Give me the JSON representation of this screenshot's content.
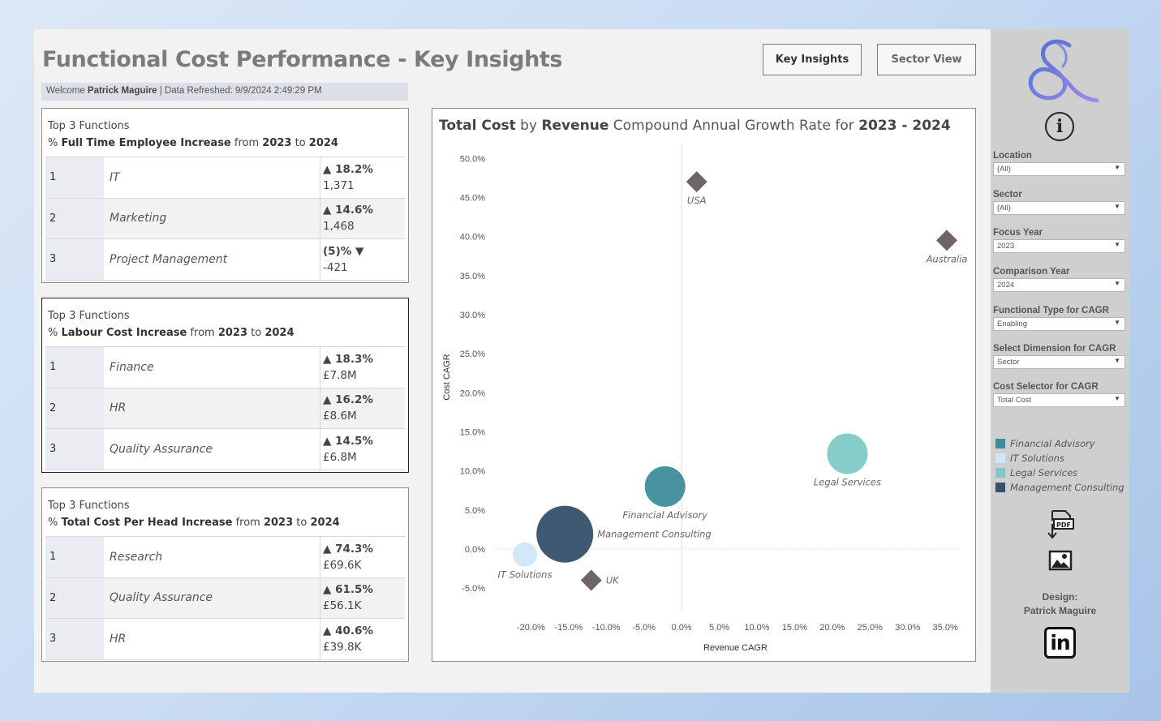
{
  "header": {
    "title": "Functional Cost Performance - Key Insights",
    "welcome_prefix": "Welcome ",
    "user": "Patrick Maguire",
    "refreshed_prefix": " | Data Refreshed: ",
    "refreshed": "9/9/2024 2:49:29 PM",
    "nav": {
      "key_insights": "Key Insights",
      "sector_view": "Sector View"
    }
  },
  "cards": [
    {
      "line1": "Top 3 Functions",
      "prefix": "% ",
      "metric": "Full Time Employee Increase",
      "from_word": " from ",
      "year_from": "2023",
      "to_word": " to ",
      "year_to": "2024",
      "rows": [
        {
          "rank": "1",
          "function": "IT",
          "pct": "▲ 18.2%",
          "value": "1,371"
        },
        {
          "rank": "2",
          "function": "Marketing",
          "pct": "▲ 14.6%",
          "value": "1,468"
        },
        {
          "rank": "3",
          "function": "Project Management",
          "pct": "(5)% ▼",
          "value": "-421"
        }
      ]
    },
    {
      "line1": "Top 3 Functions",
      "prefix": "% ",
      "metric": "Labour Cost Increase",
      "from_word": " from ",
      "year_from": "2023",
      "to_word": " to ",
      "year_to": "2024",
      "rows": [
        {
          "rank": "1",
          "function": "Finance",
          "pct": "▲ 18.3%",
          "value": "£7.8M"
        },
        {
          "rank": "2",
          "function": "HR",
          "pct": "▲ 16.2%",
          "value": "£8.6M"
        },
        {
          "rank": "3",
          "function": "Quality Assurance",
          "pct": "▲ 14.5%",
          "value": "£6.8M"
        }
      ]
    },
    {
      "line1": "Top 3 Functions",
      "prefix": "% ",
      "metric": "Total Cost Per Head Increase",
      "from_word": " from ",
      "year_from": "2023",
      "to_word": " to ",
      "year_to": "2024",
      "rows": [
        {
          "rank": "1",
          "function": "Research",
          "pct": "▲ 74.3%",
          "value": "£69.6K"
        },
        {
          "rank": "2",
          "function": "Quality Assurance",
          "pct": "▲ 61.5%",
          "value": "£56.1K"
        },
        {
          "rank": "3",
          "function": "HR",
          "pct": "▲ 40.6%",
          "value": "£39.8K"
        }
      ]
    }
  ],
  "chart_title": {
    "part1": "Total Cost",
    "part2": " by ",
    "part3": "Revenue",
    "part4": " Compound Annual Growth Rate for ",
    "part5": "2023 - 2024"
  },
  "chart_data": {
    "type": "scatter",
    "xlabel": "Revenue CAGR",
    "ylabel": "Cost CAGR",
    "xlim": [
      -25,
      38
    ],
    "ylim": [
      -8,
      52
    ],
    "x_ticks": [
      -20,
      -15,
      -10,
      -5,
      0,
      5,
      10,
      15,
      20,
      25,
      30,
      35
    ],
    "x_tick_labels": [
      "-20.0%",
      "-15.0%",
      "-10.0%",
      "-5.0%",
      "0.0%",
      "5.0%",
      "10.0%",
      "15.0%",
      "20.0%",
      "25.0%",
      "30.0%",
      "35.0%"
    ],
    "y_ticks": [
      -5,
      0,
      5,
      10,
      15,
      20,
      25,
      30,
      35,
      40,
      45,
      50
    ],
    "y_tick_labels": [
      "-5.0%",
      "0.0%",
      "5.0%",
      "10.0%",
      "15.0%",
      "20.0%",
      "25.0%",
      "30.0%",
      "35.0%",
      "40.0%",
      "45.0%",
      "50.0%"
    ],
    "points": [
      {
        "label": "USA",
        "x": 2.0,
        "y": 47.0,
        "shape": "diamond",
        "color": "#6e6567",
        "label_pos": "below"
      },
      {
        "label": "Australia",
        "x": 35.2,
        "y": 39.5,
        "shape": "diamond",
        "color": "#6e6567",
        "label_pos": "below"
      },
      {
        "label": "UK",
        "x": -12.0,
        "y": -4.0,
        "shape": "diamond",
        "color": "#6e6567",
        "label_pos": "right"
      },
      {
        "label": "Legal Services",
        "x": 22.0,
        "y": 12.2,
        "shape": "circle",
        "size": 25,
        "color": "#7ec9c7",
        "label_pos": "below"
      },
      {
        "label": "Financial Advisory",
        "x": -2.2,
        "y": 8.0,
        "shape": "circle",
        "size": 25,
        "color": "#3e8d9a",
        "label_pos": "below"
      },
      {
        "label": "Management Consulting",
        "x": -15.5,
        "y": 1.9,
        "shape": "circle",
        "size": 35,
        "color": "#36506a",
        "label_pos": "right"
      },
      {
        "label": "IT Solutions",
        "x": -20.8,
        "y": -0.7,
        "shape": "circle",
        "size": 15,
        "color": "#cfe6fa",
        "label_pos": "below"
      }
    ]
  },
  "sidebar": {
    "filters": [
      {
        "label": "Location",
        "value": "(All)"
      },
      {
        "label": "Sector",
        "value": "(All)"
      },
      {
        "label": "Focus Year",
        "value": "2023"
      },
      {
        "label": "Comparison Year",
        "value": "2024"
      },
      {
        "label": "Functional Type for CAGR",
        "value": "Enabling"
      },
      {
        "label": "Select Dimension for CAGR",
        "value": "Sector"
      },
      {
        "label": "Cost Selector for CAGR",
        "value": "Total Cost"
      }
    ],
    "legend": [
      {
        "label": "Financial Advisory",
        "color": "#3e8d9a"
      },
      {
        "label": "IT Solutions",
        "color": "#cfe6fa"
      },
      {
        "label": "Legal Services",
        "color": "#7ec9c7"
      },
      {
        "label": "Management Consulting",
        "color": "#36506a"
      }
    ],
    "design_label": "Design:",
    "designer": "Patrick Maguire",
    "linkedin_text": "in",
    "info_symbol": "i",
    "pdf_text": "PDF"
  }
}
